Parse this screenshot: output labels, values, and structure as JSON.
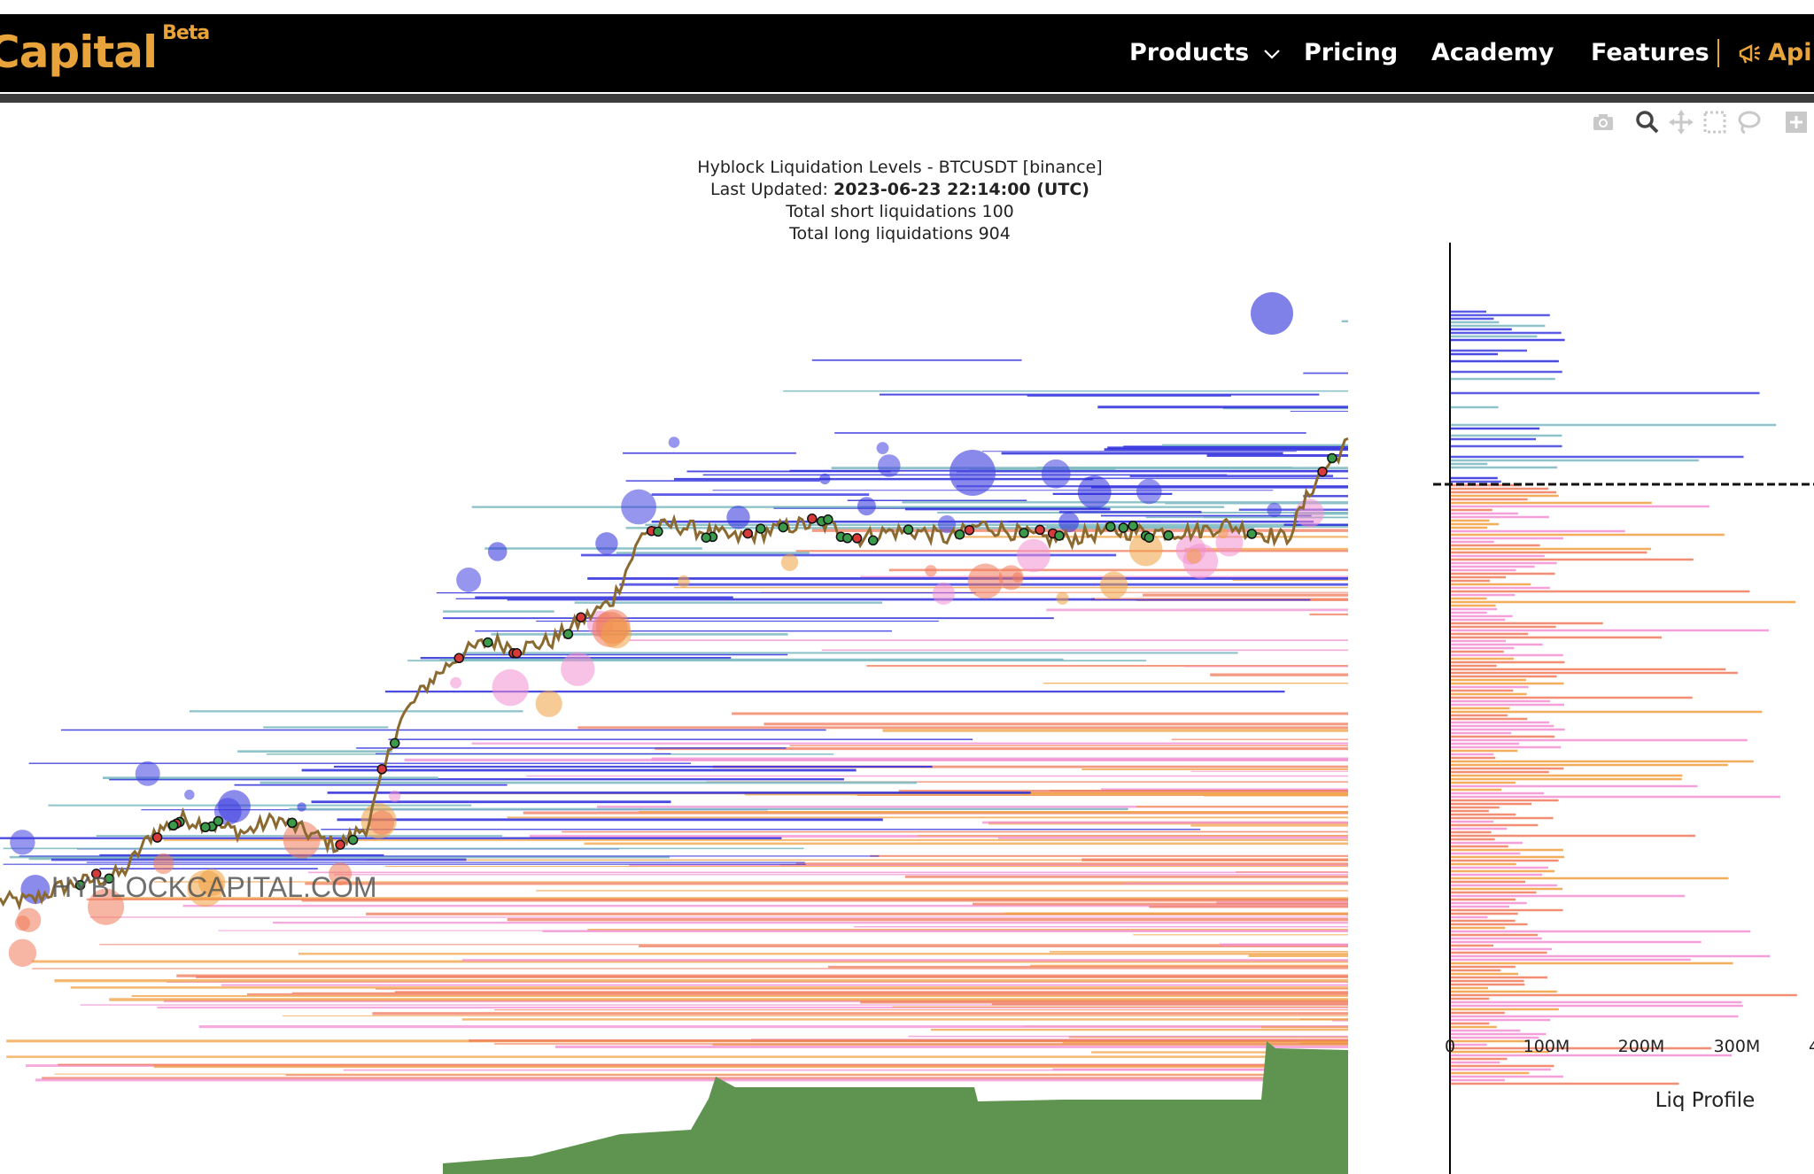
{
  "nav": {
    "brand": "Capital",
    "brand_badge": "Beta",
    "items": [
      "Products",
      "Pricing",
      "Academy",
      "Features"
    ],
    "api_label": "Api"
  },
  "modebar": [
    "camera-icon",
    "zoom-icon",
    "pan-icon",
    "box-select-icon",
    "lasso-icon",
    "zoom-in-icon"
  ],
  "chart_data": {
    "type": "scatter",
    "title": "Hyblock Liquidation Levels - BTCUSDT [binance]",
    "subtitle_label": "Last Updated:",
    "subtitle_value": "2023-06-23 22:14:00 (UTC)",
    "short_label": "Total short liquidations 100",
    "long_label": "Total long liquidations 904",
    "watermark": "HYBLOCKCAPITAL.COM",
    "price_path": [
      0.12,
      0.12,
      0.14,
      0.15,
      0.16,
      0.22,
      0.24,
      0.23,
      0.22,
      0.24,
      0.22,
      0.2,
      0.23,
      0.38,
      0.44,
      0.48,
      0.5,
      0.49,
      0.5,
      0.53,
      0.56,
      0.66,
      0.67,
      0.66,
      0.65,
      0.66,
      0.67,
      0.67,
      0.65,
      0.66,
      0.66,
      0.65,
      0.67,
      0.66,
      0.65,
      0.65,
      0.66,
      0.66,
      0.66,
      0.66,
      0.67,
      0.66,
      0.65,
      0.74,
      0.79
    ],
    "short_liquidation_colors": [
      "#2b2bdc",
      "#4040e0",
      "#7ab8c0"
    ],
    "long_liquidation_colors": [
      "#f0a040",
      "#f07a5a",
      "#f28fd2"
    ],
    "open_interest_fill": "#5f9350",
    "profile": {
      "xlabel": "Liq Profile",
      "xticks": [
        "0",
        "100M",
        "200M",
        "300M",
        "4"
      ],
      "current_price_line": "dashed"
    }
  }
}
